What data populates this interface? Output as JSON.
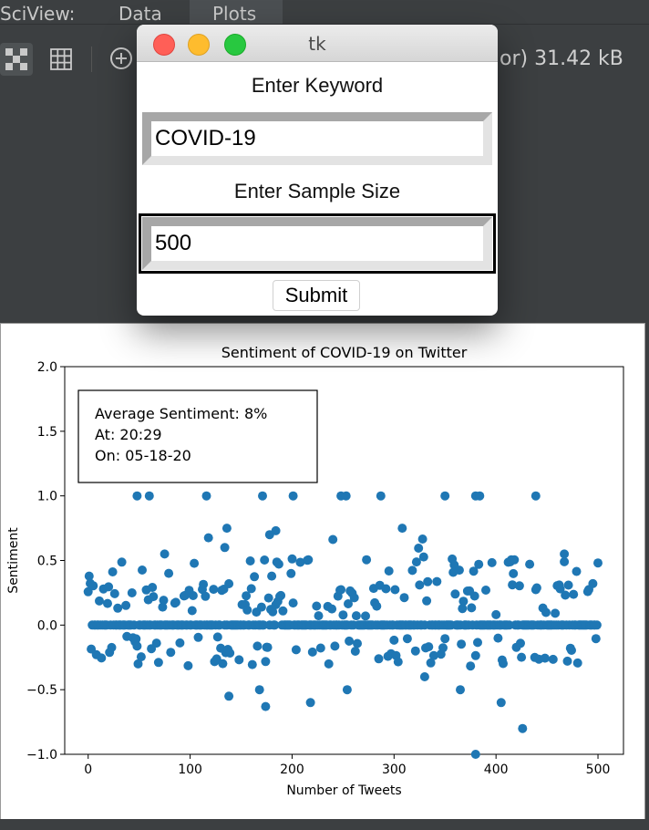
{
  "topbar": {
    "app_label": "SciView:",
    "tabs": [
      "Data",
      "Plots"
    ]
  },
  "toolbar": {
    "file_info": "or) 31.42 kB"
  },
  "dialog": {
    "title": "tk",
    "keyword_label": "Enter Keyword",
    "keyword_value": "COVID-19",
    "sample_label": "Enter Sample Size",
    "sample_value": "500",
    "submit_label": "Submit"
  },
  "colors": {
    "marker": "#1f77b4",
    "close": "#ff5f57",
    "minimize": "#febc2e",
    "zoom": "#28c840"
  },
  "chart_data": {
    "type": "scatter",
    "title": "Sentiment of COVID-19 on Twitter",
    "xlabel": "Number of Tweets",
    "ylabel": "Sentiment",
    "xlim": [
      -23,
      525
    ],
    "ylim": [
      -1.0,
      2.0
    ],
    "xticks": [
      0,
      100,
      200,
      300,
      400,
      500
    ],
    "yticks": [
      -1.0,
      -0.5,
      0.0,
      0.5,
      1.0,
      1.5,
      2.0
    ],
    "ytick_labels": [
      "−1.0",
      "−0.5",
      "0.0",
      "0.5",
      "1.0",
      "1.5",
      "2.0"
    ],
    "annotation": [
      "Average Sentiment:  8%",
      "At: 20:29",
      "On: 05-18-20"
    ],
    "n_points": 500,
    "notable_points": [
      {
        "x": 48,
        "y": 1.0
      },
      {
        "x": 60,
        "y": 1.0
      },
      {
        "x": 116,
        "y": 1.0
      },
      {
        "x": 171,
        "y": 1.0
      },
      {
        "x": 201,
        "y": 1.0
      },
      {
        "x": 248,
        "y": 1.0
      },
      {
        "x": 253,
        "y": 1.0
      },
      {
        "x": 287,
        "y": 1.0
      },
      {
        "x": 350,
        "y": 1.0
      },
      {
        "x": 380,
        "y": 1.0
      },
      {
        "x": 384,
        "y": 1.0
      },
      {
        "x": 439,
        "y": 1.0
      },
      {
        "x": 136,
        "y": 0.75
      },
      {
        "x": 184,
        "y": 0.73
      },
      {
        "x": 178,
        "y": 0.7
      },
      {
        "x": 308,
        "y": 0.75
      },
      {
        "x": 134,
        "y": 0.6
      },
      {
        "x": 75,
        "y": 0.55
      },
      {
        "x": 467,
        "y": 0.55
      },
      {
        "x": 138,
        "y": -0.55
      },
      {
        "x": 174,
        "y": -0.63
      },
      {
        "x": 218,
        "y": -0.6
      },
      {
        "x": 254,
        "y": -0.5
      },
      {
        "x": 405,
        "y": -0.6
      },
      {
        "x": 426,
        "y": -0.8
      },
      {
        "x": 380,
        "y": -1.0
      },
      {
        "x": 168,
        "y": -0.5
      },
      {
        "x": 330,
        "y": -0.4
      },
      {
        "x": 365,
        "y": -0.5
      }
    ]
  }
}
